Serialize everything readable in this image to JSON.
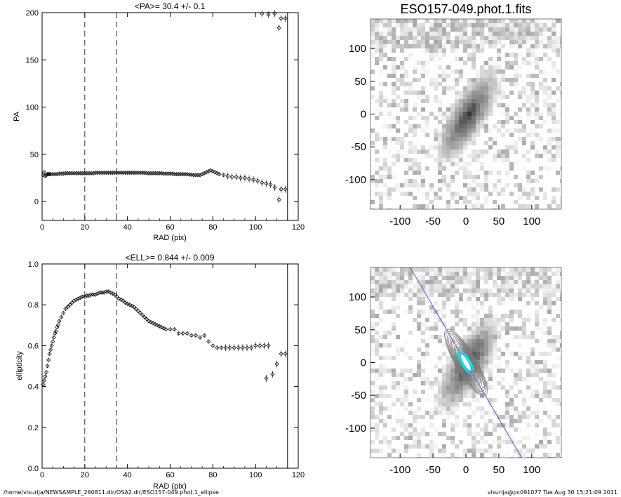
{
  "footer": {
    "path": "/home/visurija/NEWSAMPLE_260811.dir/OSA2.dir/ESO157-049.phot.1_ellipse",
    "stamp": "visurija@pc091077  Tue Aug 30 15:21:09 2011"
  },
  "chart_data": [
    {
      "type": "scatter",
      "title": "<PA>=  30.4 +/-   0.1",
      "xlabel": "RAD (pix)",
      "ylabel": "PA",
      "xlim": [
        0,
        120
      ],
      "ylim": [
        -20,
        200
      ],
      "xticks": [
        0,
        20,
        40,
        60,
        80,
        100,
        120
      ],
      "yticks": [
        0,
        50,
        100,
        150,
        200
      ],
      "vlines_dashed": [
        20,
        35
      ],
      "vline_solid": 115,
      "points": [
        [
          0.5,
          28
        ],
        [
          1,
          31
        ],
        [
          1.5,
          27
        ],
        [
          2,
          28
        ],
        [
          2.5,
          29
        ],
        [
          3,
          29
        ],
        [
          3.5,
          29
        ],
        [
          4,
          29
        ],
        [
          5,
          29
        ],
        [
          6,
          29
        ],
        [
          7,
          29
        ],
        [
          8,
          29.5
        ],
        [
          9,
          29.5
        ],
        [
          10,
          29.5
        ],
        [
          11,
          30
        ],
        [
          12,
          30
        ],
        [
          13,
          30
        ],
        [
          14,
          30
        ],
        [
          15,
          30
        ],
        [
          16,
          30
        ],
        [
          17,
          30
        ],
        [
          18,
          30
        ],
        [
          19,
          30
        ],
        [
          20,
          30
        ],
        [
          21,
          30
        ],
        [
          22,
          30
        ],
        [
          23,
          30
        ],
        [
          24,
          30
        ],
        [
          25,
          30.5
        ],
        [
          26,
          30.5
        ],
        [
          27,
          30.5
        ],
        [
          28,
          30.5
        ],
        [
          29,
          30.5
        ],
        [
          30,
          30.5
        ],
        [
          31,
          30.5
        ],
        [
          32,
          30.5
        ],
        [
          33,
          30.5
        ],
        [
          34,
          30.5
        ],
        [
          35,
          30.5
        ],
        [
          36,
          30.5
        ],
        [
          37,
          30.5
        ],
        [
          38,
          30.5
        ],
        [
          39,
          30.5
        ],
        [
          40,
          30.5
        ],
        [
          41,
          30.5
        ],
        [
          42,
          30.5
        ],
        [
          43,
          30.5
        ],
        [
          44,
          30.5
        ],
        [
          45,
          30.5
        ],
        [
          46,
          30.5
        ],
        [
          47,
          30.5
        ],
        [
          48,
          30.5
        ],
        [
          49,
          30
        ],
        [
          50,
          30
        ],
        [
          51,
          30
        ],
        [
          52,
          30
        ],
        [
          53,
          30
        ],
        [
          54,
          30
        ],
        [
          55,
          30
        ],
        [
          56,
          30
        ],
        [
          57,
          29.5
        ],
        [
          58,
          29.5
        ],
        [
          59,
          29.5
        ],
        [
          60,
          29.5
        ],
        [
          61,
          29.5
        ],
        [
          62,
          29
        ],
        [
          63,
          29
        ],
        [
          64,
          29
        ],
        [
          65,
          29
        ],
        [
          66,
          29
        ],
        [
          67,
          29
        ],
        [
          68,
          29
        ],
        [
          69,
          28.5
        ],
        [
          70,
          28.5
        ],
        [
          71,
          28
        ],
        [
          72,
          28
        ],
        [
          73,
          28
        ],
        [
          74,
          28
        ],
        [
          75,
          29
        ],
        [
          76,
          30
        ],
        [
          77,
          31
        ],
        [
          78,
          32
        ],
        [
          79,
          33
        ],
        [
          80,
          32
        ],
        [
          81,
          31
        ],
        [
          82,
          30
        ],
        [
          83,
          29
        ],
        [
          85,
          28
        ],
        [
          87,
          27
        ],
        [
          89,
          26
        ],
        [
          91,
          26
        ],
        [
          93,
          25
        ],
        [
          95,
          25
        ],
        [
          97,
          24
        ],
        [
          99,
          23
        ],
        [
          101,
          22
        ],
        [
          103,
          20
        ],
        [
          105,
          19
        ],
        [
          107,
          18
        ],
        [
          109,
          15
        ],
        [
          111,
          2
        ],
        [
          112,
          13
        ],
        [
          114,
          13
        ],
        [
          97,
          202
        ],
        [
          100,
          201
        ],
        [
          103,
          199
        ],
        [
          106,
          198
        ],
        [
          109,
          199
        ],
        [
          111,
          184
        ],
        [
          112,
          194
        ],
        [
          114,
          194
        ]
      ]
    },
    {
      "type": "scatter",
      "title": "<ELL>= 0.844 +/-  0.009",
      "xlabel": "RAD (pix)",
      "ylabel": "ellipticity",
      "xlim": [
        0,
        120
      ],
      "ylim": [
        0.0,
        1.0
      ],
      "xticks": [
        0,
        20,
        40,
        60,
        80,
        100,
        120
      ],
      "yticks": [
        0.0,
        0.2,
        0.4,
        0.6,
        0.8,
        1.0
      ],
      "vlines_dashed": [
        20,
        35
      ],
      "vline_solid": 115,
      "points": [
        [
          0.5,
          0.41
        ],
        [
          1,
          0.43
        ],
        [
          1.5,
          0.45
        ],
        [
          2,
          0.47
        ],
        [
          2.5,
          0.5
        ],
        [
          3,
          0.53
        ],
        [
          3.5,
          0.56
        ],
        [
          4,
          0.58
        ],
        [
          4.5,
          0.6
        ],
        [
          5,
          0.62
        ],
        [
          5.5,
          0.64
        ],
        [
          6,
          0.66
        ],
        [
          6.5,
          0.67
        ],
        [
          7,
          0.69
        ],
        [
          7.5,
          0.7
        ],
        [
          8,
          0.72
        ],
        [
          9,
          0.74
        ],
        [
          10,
          0.76
        ],
        [
          11,
          0.78
        ],
        [
          12,
          0.79
        ],
        [
          13,
          0.8
        ],
        [
          14,
          0.81
        ],
        [
          15,
          0.82
        ],
        [
          16,
          0.825
        ],
        [
          17,
          0.83
        ],
        [
          18,
          0.835
        ],
        [
          19,
          0.84
        ],
        [
          20,
          0.84
        ],
        [
          21,
          0.845
        ],
        [
          22,
          0.845
        ],
        [
          23,
          0.85
        ],
        [
          24,
          0.85
        ],
        [
          25,
          0.85
        ],
        [
          26,
          0.855
        ],
        [
          27,
          0.86
        ],
        [
          28,
          0.86
        ],
        [
          29,
          0.86
        ],
        [
          30,
          0.865
        ],
        [
          31,
          0.865
        ],
        [
          32,
          0.86
        ],
        [
          33,
          0.855
        ],
        [
          34,
          0.85
        ],
        [
          35,
          0.84
        ],
        [
          36,
          0.83
        ],
        [
          37,
          0.825
        ],
        [
          38,
          0.82
        ],
        [
          39,
          0.81
        ],
        [
          40,
          0.805
        ],
        [
          41,
          0.8
        ],
        [
          42,
          0.795
        ],
        [
          43,
          0.79
        ],
        [
          44,
          0.78
        ],
        [
          45,
          0.77
        ],
        [
          46,
          0.76
        ],
        [
          47,
          0.75
        ],
        [
          48,
          0.74
        ],
        [
          49,
          0.73
        ],
        [
          50,
          0.72
        ],
        [
          51,
          0.715
        ],
        [
          52,
          0.71
        ],
        [
          53,
          0.705
        ],
        [
          54,
          0.7
        ],
        [
          55,
          0.695
        ],
        [
          56,
          0.69
        ],
        [
          57,
          0.685
        ],
        [
          58,
          0.68
        ],
        [
          60,
          0.68
        ],
        [
          62,
          0.68
        ],
        [
          64,
          0.66
        ],
        [
          66,
          0.66
        ],
        [
          68,
          0.66
        ],
        [
          70,
          0.65
        ],
        [
          72,
          0.65
        ],
        [
          74,
          0.64
        ],
        [
          76,
          0.65
        ],
        [
          78,
          0.62
        ],
        [
          80,
          0.6
        ],
        [
          82,
          0.59
        ],
        [
          84,
          0.59
        ],
        [
          86,
          0.59
        ],
        [
          88,
          0.59
        ],
        [
          90,
          0.59
        ],
        [
          92,
          0.59
        ],
        [
          94,
          0.59
        ],
        [
          96,
          0.59
        ],
        [
          98,
          0.59
        ],
        [
          100,
          0.6
        ],
        [
          102,
          0.6
        ],
        [
          104,
          0.6
        ],
        [
          105,
          0.44
        ],
        [
          106,
          0.6
        ],
        [
          108,
          0.46
        ],
        [
          110,
          0.51
        ],
        [
          112,
          0.56
        ],
        [
          114,
          0.56
        ]
      ]
    },
    {
      "type": "heatmap",
      "title": "ESO157-049.phot.1.fits",
      "xlim": [
        -145,
        145
      ],
      "ylim": [
        -145,
        145
      ],
      "xticks": [
        -100,
        -50,
        0,
        50,
        100
      ],
      "yticks": [
        -100,
        -50,
        0,
        50,
        100
      ],
      "major_axis_pa": 30.4,
      "ellipticity": 0.844
    },
    {
      "type": "heatmap",
      "title": "",
      "xlim": [
        -145,
        145
      ],
      "ylim": [
        -145,
        145
      ],
      "xticks": [
        -100,
        -50,
        0,
        50,
        100
      ],
      "yticks": [
        -100,
        -50,
        0,
        50,
        100
      ],
      "major_axis_pa": 30.4,
      "ellipticity": 0.844,
      "overlay": "isophote contours and major-axis line",
      "line_color": "#4a5fd0",
      "contour_color": "#7a7a7a",
      "core_color": "#18d8e8"
    }
  ]
}
